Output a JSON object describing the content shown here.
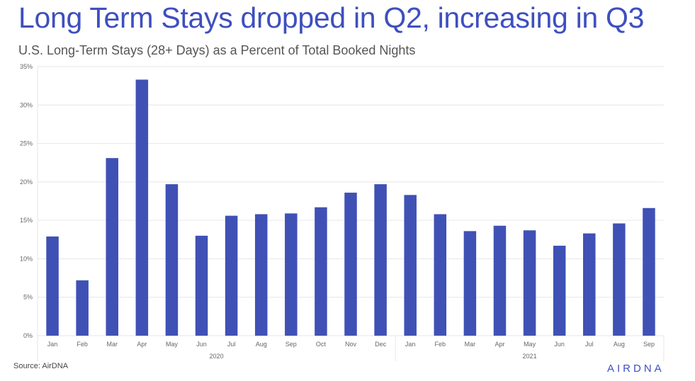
{
  "header": {
    "title": "Long Term Stays dropped in Q2, increasing in Q3",
    "subtitle": "U.S. Long-Term Stays (28+ Days) as a Percent of Total Booked Nights"
  },
  "footer": {
    "source": "Source: AirDNA",
    "logo_text": "AIRDNA"
  },
  "colors": {
    "bar": "#3f51b5",
    "grid": "#e6e6e6",
    "axis_text": "#666666"
  },
  "chart_data": {
    "type": "bar",
    "title": "Long Term Stays dropped in Q2, increasing in Q3",
    "subtitle": "U.S. Long-Term Stays (28+ Days) as a Percent of Total Booked Nights",
    "categories": [
      "Jan",
      "Feb",
      "Mar",
      "Apr",
      "May",
      "Jun",
      "Jul",
      "Aug",
      "Sep",
      "Oct",
      "Nov",
      "Dec",
      "Jan",
      "Feb",
      "Mar",
      "Apr",
      "May",
      "Jun",
      "Jul",
      "Aug",
      "Sep"
    ],
    "category_groups": [
      {
        "label": "2020",
        "count": 12
      },
      {
        "label": "2021",
        "count": 9
      }
    ],
    "values": [
      12.9,
      7.2,
      23.1,
      33.3,
      19.7,
      13.0,
      15.6,
      15.8,
      15.9,
      16.7,
      18.6,
      19.7,
      18.3,
      15.8,
      13.6,
      14.3,
      13.7,
      11.7,
      13.3,
      14.6,
      16.6
    ],
    "ylim": [
      0,
      35
    ],
    "yticks": [
      0,
      5,
      10,
      15,
      20,
      25,
      30,
      35
    ],
    "ytick_labels": [
      "0%",
      "5%",
      "10%",
      "15%",
      "20%",
      "25%",
      "30%",
      "35%"
    ],
    "xlabel": "",
    "ylabel": "",
    "grid": true,
    "legend": "none"
  }
}
